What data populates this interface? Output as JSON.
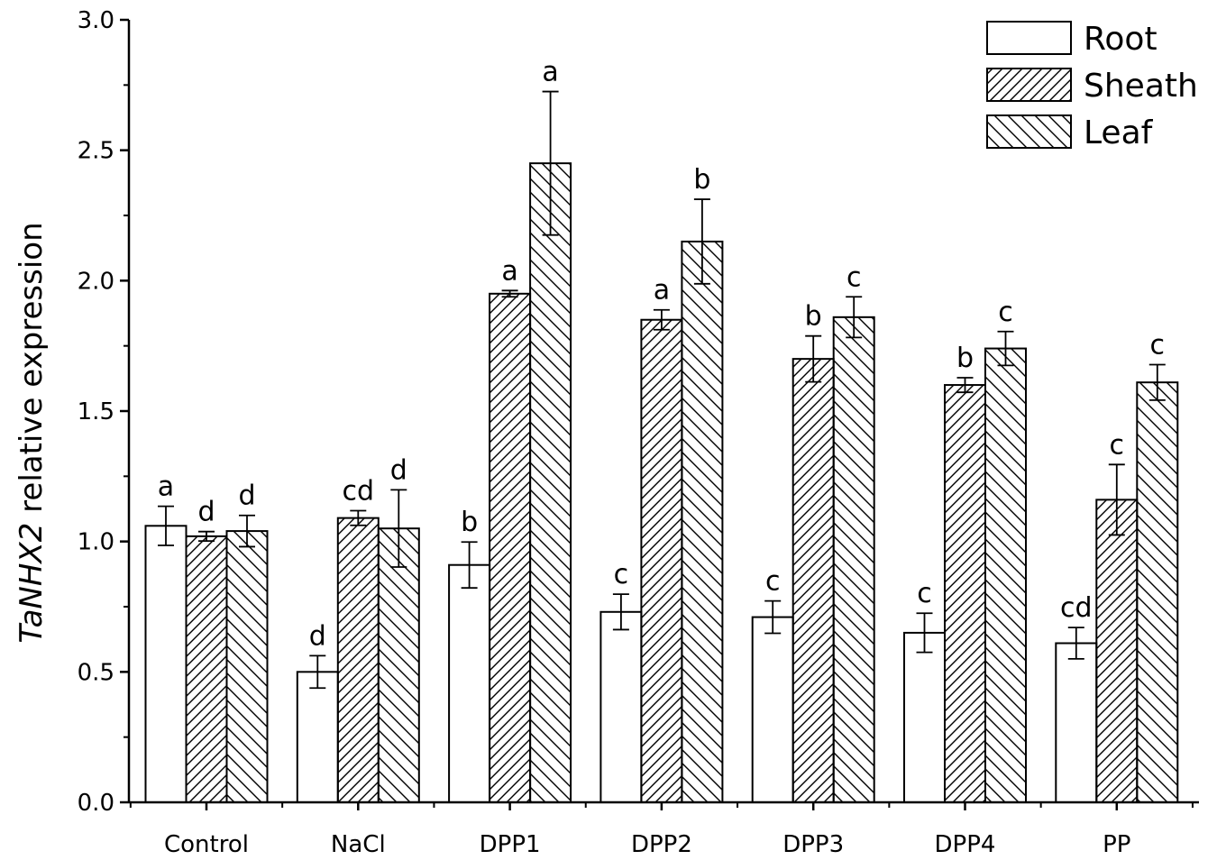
{
  "chart_data": {
    "type": "bar",
    "ylabel_gene": "TaNHX2",
    "ylabel_rest": " relative expression",
    "categories": [
      "Control",
      "NaCl",
      "DPP1",
      "DPP2",
      "DPP3",
      "DPP4",
      "PP"
    ],
    "ylim": [
      0,
      3.0
    ],
    "yticks": [
      "0.0",
      "0.5",
      "1.0",
      "1.5",
      "2.0",
      "2.5",
      "3.0"
    ],
    "legend_position": "top-right",
    "series": [
      {
        "name": "Root",
        "pattern": "none",
        "values": [
          1.06,
          0.5,
          0.91,
          0.73,
          0.71,
          0.65,
          0.61
        ],
        "errors": [
          0.075,
          0.062,
          0.088,
          0.068,
          0.062,
          0.075,
          0.06
        ],
        "labels": [
          "a",
          "d",
          "b",
          "c",
          "c",
          "c",
          "cd"
        ]
      },
      {
        "name": "Sheath",
        "pattern": "forward-hatch",
        "values": [
          1.02,
          1.09,
          1.95,
          1.85,
          1.7,
          1.6,
          1.16
        ],
        "errors": [
          0.018,
          0.028,
          0.012,
          0.038,
          0.088,
          0.028,
          0.135
        ],
        "labels": [
          "d",
          "cd",
          "a",
          "a",
          "b",
          "b",
          "c"
        ]
      },
      {
        "name": "Leaf",
        "pattern": "back-hatch",
        "values": [
          1.04,
          1.05,
          2.45,
          2.15,
          1.86,
          1.74,
          1.61
        ],
        "errors": [
          0.06,
          0.148,
          0.275,
          0.162,
          0.078,
          0.065,
          0.068
        ],
        "labels": [
          "d",
          "d",
          "a",
          "b",
          "c",
          "c",
          "c"
        ]
      }
    ]
  }
}
